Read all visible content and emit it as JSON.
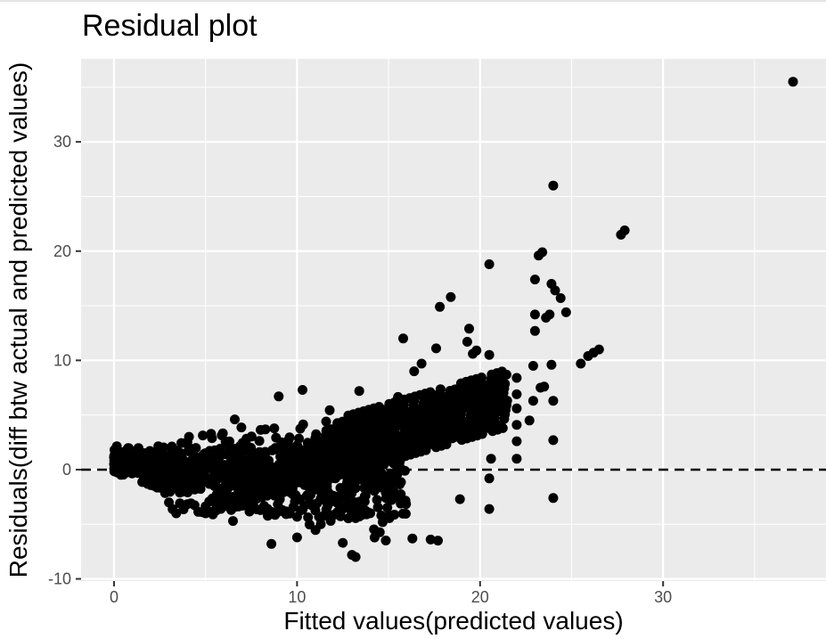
{
  "chart_data": {
    "type": "scatter",
    "title": "Residual plot",
    "xlabel": "Fitted values(predicted values)",
    "ylabel": "Residuals(diff btw actual and predicted values)",
    "xlim": [
      -1.8,
      38.9
    ],
    "ylim": [
      -10.2,
      37.6
    ],
    "x_ticks": [
      0,
      10,
      20,
      30
    ],
    "x_tick_labels": [
      "0",
      "10",
      "20",
      "30"
    ],
    "y_ticks": [
      -10,
      0,
      10,
      20,
      30
    ],
    "y_tick_labels": [
      "-10",
      "0",
      "10",
      "20",
      "30"
    ],
    "grid": true,
    "background": "#ebebeb",
    "grid_color": "#ffffff",
    "point_color": "#000000",
    "reference_line": {
      "y": 0,
      "style": "dashed",
      "color": "#000000"
    },
    "notable_points": [
      {
        "x": 37.1,
        "y": 35.5
      },
      {
        "x": 24.0,
        "y": 26.0
      },
      {
        "x": 27.9,
        "y": 21.9
      },
      {
        "x": 27.7,
        "y": 21.5
      },
      {
        "x": 23.4,
        "y": 19.9
      },
      {
        "x": 23.2,
        "y": 19.6
      },
      {
        "x": 20.5,
        "y": 18.8
      },
      {
        "x": 23.0,
        "y": 17.4
      },
      {
        "x": 23.9,
        "y": 17.0
      },
      {
        "x": 24.1,
        "y": 16.4
      },
      {
        "x": 18.4,
        "y": 15.8
      },
      {
        "x": 24.4,
        "y": 15.7
      },
      {
        "x": 17.8,
        "y": 14.9
      },
      {
        "x": 24.7,
        "y": 14.4
      },
      {
        "x": 23.0,
        "y": 14.2
      },
      {
        "x": 23.8,
        "y": 14.2
      },
      {
        "x": 23.6,
        "y": 13.9
      },
      {
        "x": 19.4,
        "y": 12.9
      },
      {
        "x": 23.0,
        "y": 12.7
      },
      {
        "x": 15.8,
        "y": 12.0
      },
      {
        "x": 19.3,
        "y": 11.7
      },
      {
        "x": 17.6,
        "y": 11.1
      },
      {
        "x": 19.8,
        "y": 10.9
      },
      {
        "x": 26.5,
        "y": 11.0
      },
      {
        "x": 26.2,
        "y": 10.7
      },
      {
        "x": 25.9,
        "y": 10.4
      },
      {
        "x": 19.6,
        "y": 10.6
      },
      {
        "x": 20.5,
        "y": 10.5
      },
      {
        "x": 25.5,
        "y": 9.7
      },
      {
        "x": 22.9,
        "y": 9.5
      },
      {
        "x": 23.9,
        "y": 9.6
      },
      {
        "x": 23.3,
        "y": 7.5
      },
      {
        "x": 23.5,
        "y": 7.6
      },
      {
        "x": 24.0,
        "y": 6.3
      },
      {
        "x": 22.9,
        "y": 6.3
      },
      {
        "x": 24.0,
        "y": 2.7
      },
      {
        "x": 24.0,
        "y": -2.6
      },
      {
        "x": 22.0,
        "y": 8.4
      },
      {
        "x": 22.0,
        "y": 6.9
      },
      {
        "x": 22.0,
        "y": 5.6
      },
      {
        "x": 22.0,
        "y": 4.1
      },
      {
        "x": 22.0,
        "y": 2.6
      },
      {
        "x": 22.0,
        "y": 1.0
      },
      {
        "x": 22.7,
        "y": 4.5
      },
      {
        "x": 20.6,
        "y": 1.0
      },
      {
        "x": 20.5,
        "y": -0.8
      },
      {
        "x": 20.5,
        "y": -3.6
      },
      {
        "x": 18.9,
        "y": -2.7
      },
      {
        "x": 17.7,
        "y": -6.5
      },
      {
        "x": 17.3,
        "y": -6.4
      },
      {
        "x": 16.3,
        "y": -6.3
      },
      {
        "x": 13.2,
        "y": -8.0
      },
      {
        "x": 13.0,
        "y": -7.8
      },
      {
        "x": 8.6,
        "y": -6.8
      },
      {
        "x": 9.0,
        "y": 6.7
      },
      {
        "x": 10.3,
        "y": 7.3
      },
      {
        "x": 6.6,
        "y": 4.6
      },
      {
        "x": 13.4,
        "y": 7.2
      },
      {
        "x": 16.4,
        "y": 9.0
      },
      {
        "x": 16.8,
        "y": 9.7
      },
      {
        "x": 12.5,
        "y": -6.7
      },
      {
        "x": 10.0,
        "y": -6.2
      },
      {
        "x": 6.5,
        "y": -4.7
      }
    ],
    "dense_cluster": {
      "x_range": [
        0,
        16
      ],
      "y_band": [
        -5,
        5
      ],
      "trend_lines_x": [
        5,
        21.5
      ],
      "count": 900
    }
  }
}
